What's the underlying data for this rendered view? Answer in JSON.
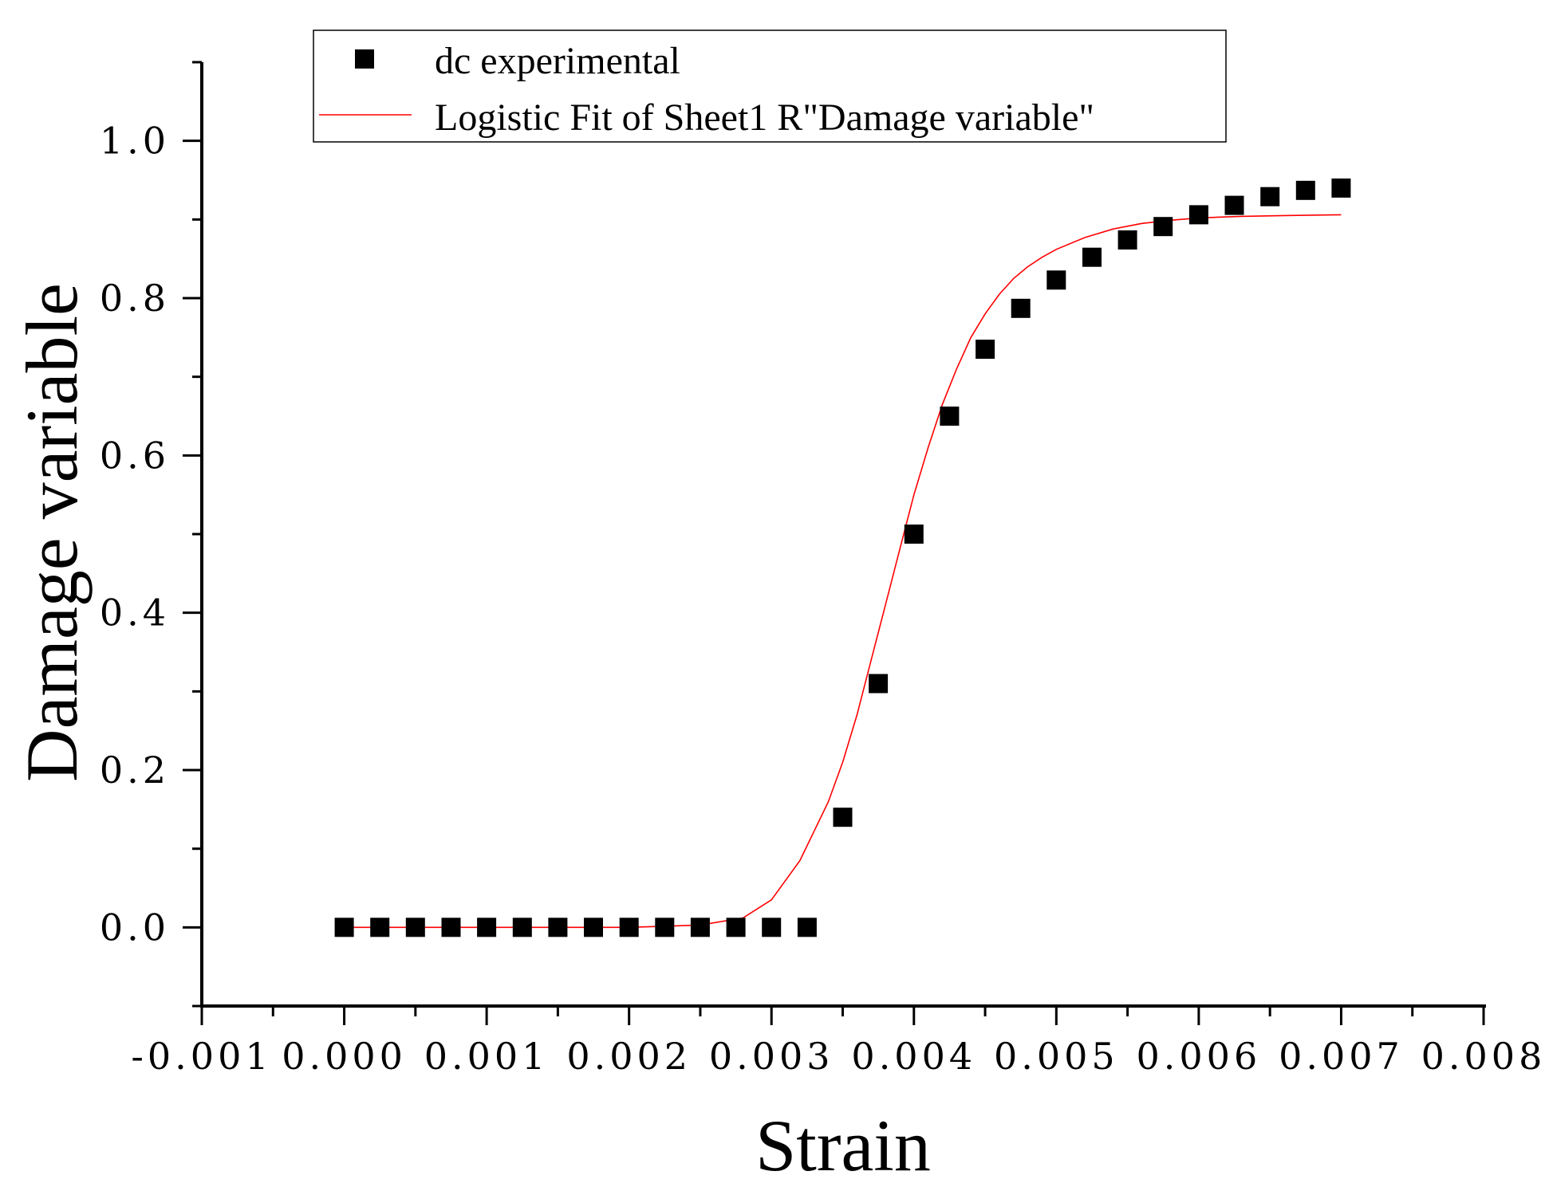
{
  "chart_data": {
    "type": "scatter",
    "xlabel": "Strain",
    "ylabel": "Damage variable",
    "xlim": [
      -0.001,
      0.008
    ],
    "ylim": [
      -0.1,
      1.1
    ],
    "x_ticks": [
      -0.001,
      0.0,
      0.001,
      0.002,
      0.003,
      0.004,
      0.005,
      0.006,
      0.007,
      0.008
    ],
    "x_tick_labels": [
      "-0.001",
      "0.000",
      "0.001",
      "0.002",
      "0.003",
      "0.004",
      "0.005",
      "0.006",
      "0.007",
      "0.008"
    ],
    "y_ticks": [
      0.0,
      0.2,
      0.4,
      0.6,
      0.8,
      1.0
    ],
    "y_tick_labels": [
      "0.0",
      "0.2",
      "0.4",
      "0.6",
      "0.8",
      "1.0"
    ],
    "grid": false,
    "legend_placement": "top",
    "series": [
      {
        "name": "dc experimental",
        "kind": "scatter",
        "marker": "square",
        "color": "#000000",
        "x": [
          0.0,
          0.00025,
          0.0005,
          0.00075,
          0.001,
          0.00125,
          0.0015,
          0.00175,
          0.002,
          0.00225,
          0.0025,
          0.00275,
          0.003,
          0.00325,
          0.0035,
          0.00375,
          0.004,
          0.00425,
          0.0045,
          0.00475,
          0.005,
          0.00525,
          0.0055,
          0.00575,
          0.006,
          0.00625,
          0.0065,
          0.00675,
          0.007
        ],
        "y": [
          0,
          0,
          0,
          0,
          0,
          0,
          0,
          0,
          0,
          0,
          0,
          0,
          0,
          0,
          0.14,
          0.31,
          0.5,
          0.65,
          0.735,
          0.787,
          0.823,
          0.852,
          0.874,
          0.891,
          0.906,
          0.918,
          0.929,
          0.937,
          0.94
        ]
      },
      {
        "name": "Logistic Fit of Sheet1 R\"Damage variable\"",
        "kind": "line",
        "color": "#ff0000",
        "x": [
          0.0,
          0.0005,
          0.001,
          0.0015,
          0.002,
          0.0025,
          0.0028,
          0.003,
          0.0032,
          0.0034,
          0.0035,
          0.0036,
          0.0037,
          0.0038,
          0.0039,
          0.004,
          0.0041,
          0.0042,
          0.0043,
          0.0044,
          0.0045,
          0.0046,
          0.0047,
          0.0048,
          0.0049,
          0.005,
          0.0052,
          0.0054,
          0.0056,
          0.0058,
          0.006,
          0.0063,
          0.0066,
          0.007
        ],
        "y": [
          0.0,
          0.0,
          0.0,
          0.0,
          0.0,
          0.003,
          0.012,
          0.035,
          0.085,
          0.16,
          0.21,
          0.27,
          0.34,
          0.41,
          0.48,
          0.55,
          0.61,
          0.665,
          0.71,
          0.75,
          0.78,
          0.805,
          0.825,
          0.84,
          0.852,
          0.862,
          0.877,
          0.888,
          0.895,
          0.899,
          0.902,
          0.904,
          0.905,
          0.906
        ]
      }
    ]
  }
}
